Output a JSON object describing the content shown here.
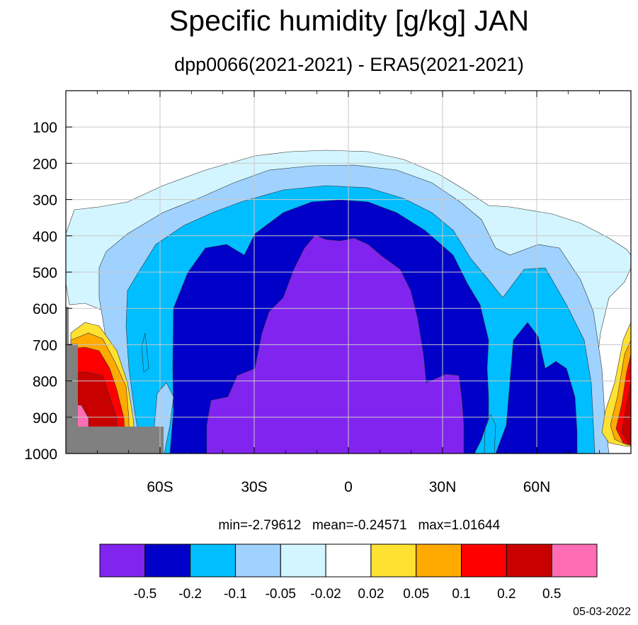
{
  "title": "Specific humidity [g/kg] JAN",
  "subtitle": "dpp0066(2021-2021) - ERA5(2021-2021)",
  "stats": {
    "min_label": "min=-2.79612",
    "mean_label": "mean=-0.24571",
    "max_label": "max=1.01644"
  },
  "date": "05-03-2022",
  "chart_data": {
    "type": "heatmap",
    "title": "Specific humidity [g/kg] JAN",
    "subtitle": "dpp0066(2021-2021) - ERA5(2021-2021)",
    "x_axis": {
      "range": [
        -90,
        90
      ],
      "ticks": [
        -60,
        -30,
        0,
        30,
        60
      ],
      "tick_labels": [
        "60S",
        "30S",
        "0",
        "30N",
        "60N"
      ]
    },
    "y_axis": {
      "range": [
        1000,
        0
      ],
      "ticks": [
        100,
        200,
        300,
        400,
        500,
        600,
        700,
        800,
        900,
        1000
      ],
      "tick_labels": [
        "100",
        "200",
        "300",
        "400",
        "500",
        "600",
        "700",
        "800",
        "900",
        "1000"
      ]
    },
    "grid": true,
    "colorbar": {
      "position": "bottom",
      "levels": [
        "-0.5",
        "-0.2",
        "-0.1",
        "-0.05",
        "-0.02",
        "0.02",
        "0.05",
        "0.1",
        "0.2",
        "0.5"
      ],
      "colors": [
        "#8224f0",
        "#0000c8",
        "#00beff",
        "#a0d2ff",
        "#d2f5ff",
        "#ffffff",
        "#ffe132",
        "#ffaa00",
        "#ff0000",
        "#c80000",
        "#ff6eb4"
      ]
    },
    "statistics": {
      "min": -2.79612,
      "mean": -0.24571,
      "max": 1.01644
    }
  }
}
